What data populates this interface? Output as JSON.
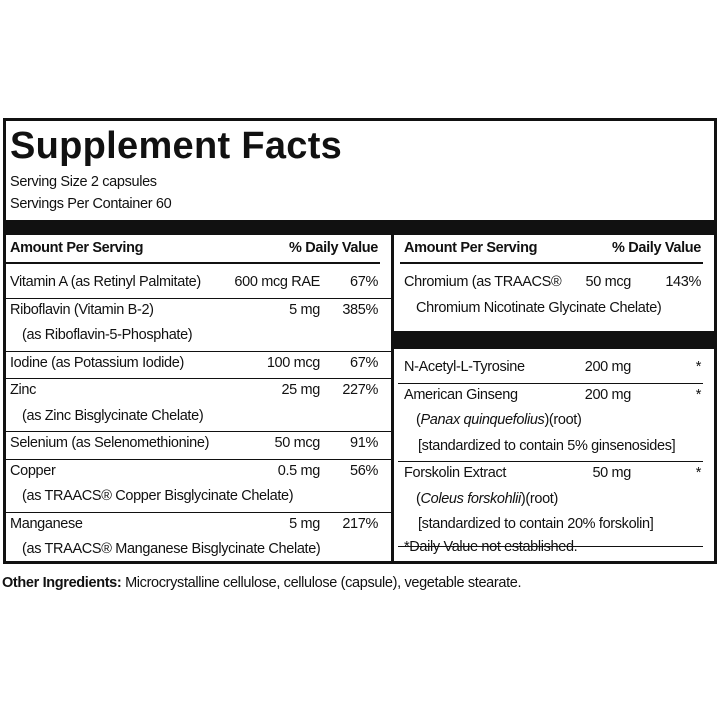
{
  "title": "Supplement Facts",
  "serving": [
    "Serving Size 2 capsules",
    "Servings Per Container 60"
  ],
  "left": {
    "header": {
      "amount": "Amount Per Serving",
      "dv": "% Daily Value"
    },
    "rows": [
      {
        "name": "Vitamin A (as Retinyl Palmitate)",
        "amount": "600 mcg RAE",
        "dv": "67%"
      },
      {
        "name": "Riboflavin (Vitamin B-2)",
        "amount": "5 mg",
        "dv": "385%",
        "sub": [
          [
            "(as Riboflavin-5-Phosphate)"
          ]
        ]
      },
      {
        "name": "Iodine (as Potassium Iodide)",
        "amount": "100 mcg",
        "dv": "67%"
      },
      {
        "name": "Zinc",
        "amount": "25 mg",
        "dv": "227%",
        "sub": [
          [
            "(as Zinc Bisglycinate Chelate)"
          ]
        ]
      },
      {
        "name": "Selenium (as Selenomethionine)",
        "amount": "50 mcg",
        "dv": "91%"
      },
      {
        "name": "Copper",
        "amount": "0.5 mg",
        "dv": "56%",
        "sub": [
          [
            "(as TRAACS® Copper Bisglycinate Chelate)"
          ]
        ]
      },
      {
        "name": "Manganese",
        "amount": "5 mg",
        "dv": "217%",
        "sub": [
          [
            "(as TRAACS® Manganese Bisglycinate Chelate)"
          ]
        ]
      }
    ]
  },
  "right": {
    "header": {
      "amount": "Amount Per Serving",
      "dv": "% Daily Value"
    },
    "groups": [
      [
        {
          "name": "Chromium (as TRAACS®",
          "amount": "50 mcg",
          "dv": "143%",
          "sub": [
            [
              "Chromium Nicotinate Glycinate Chelate)"
            ]
          ]
        }
      ],
      [
        {
          "name": "N-Acetyl-L-Tyrosine",
          "amount": "200 mg",
          "dv": "*"
        },
        {
          "name": "American Ginseng",
          "amount": "200 mg",
          "dv": "*",
          "sub": [
            [
              "(",
              "Panax quinquefolius",
              ")(root)"
            ],
            [
              "[standardized to contain 5% ginsenosides]"
            ]
          ]
        },
        {
          "name": "Forskolin Extract",
          "amount": "50 mg",
          "dv": "*",
          "sub": [
            [
              "(",
              "Coleus forskohlii",
              ")(root)"
            ],
            [
              "[standardized to contain 20% forskolin]"
            ]
          ]
        }
      ]
    ],
    "footnote": "*Daily Value not established."
  },
  "other": {
    "label": "Other Ingredients:",
    "text": " Microcrystalline cellulose, cellulose (capsule), vegetable stearate."
  }
}
